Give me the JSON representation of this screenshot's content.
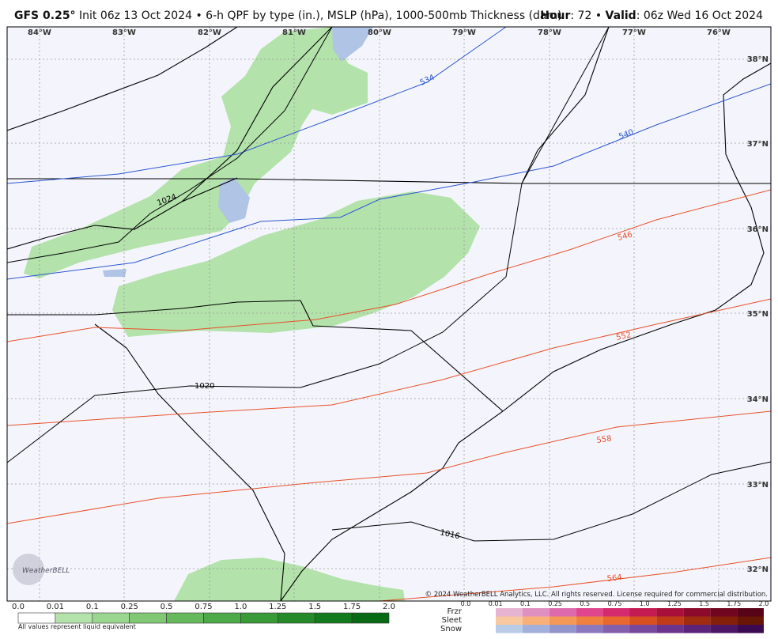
{
  "header": {
    "model": "GFS 0.25°",
    "description": "Init 06z 13 Oct 2024 • 6-h QPF by type (in.), MSLP (hPa), 1000-500mb Thickness (dam)",
    "hour_label": "Hour",
    "hour": ": 72 •",
    "valid_label": "Valid",
    "valid": ": 06z Wed 16 Oct 2024"
  },
  "map": {
    "longitudes": [
      "84°W",
      "83°W",
      "82°W",
      "81°W",
      "80°W",
      "79°W",
      "78°W",
      "77°W",
      "76°W"
    ],
    "latitudes": [
      "38°N",
      "37°N",
      "36°N",
      "35°N",
      "34°N",
      "33°N",
      "32°N"
    ],
    "thickness_labels": [
      "534",
      "540",
      "546",
      "552",
      "558",
      "564"
    ],
    "isobar_labels": [
      "1024",
      "1020",
      "1016"
    ],
    "logo": "WeatherBELL",
    "copyright": "© 2024 WeatherBELL Analytics, LLC. All rights reserved. License required for commercial distribution."
  },
  "legend": {
    "rain_scale": [
      "0.0",
      "0.01",
      "0.1",
      "0.25",
      "0.5",
      "0.75",
      "1.0",
      "1.25",
      "1.5",
      "1.75",
      "2.0"
    ],
    "note": "All values represent liquid equivalent",
    "types": [
      "Frzr",
      "Sleet",
      "Snow"
    ],
    "type_scale": [
      "0.0",
      "0.01",
      "0.1",
      "0.25",
      "0.5",
      "0.75",
      "1.0",
      "1.25",
      "1.5",
      "1.75",
      "2.0"
    ]
  }
}
